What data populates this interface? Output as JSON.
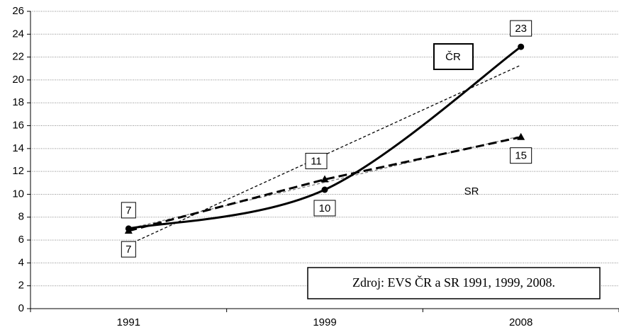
{
  "chart_data": {
    "type": "line",
    "categories": [
      "1991",
      "1999",
      "2008"
    ],
    "series": [
      {
        "name": "ČR",
        "color": "#000000",
        "dash": false,
        "marker": "circle",
        "values": [
          7,
          10.4,
          22.9
        ],
        "value_labels": [
          "7",
          "10",
          "23"
        ],
        "trend": [
          5.6,
          13.45,
          21.3
        ],
        "trend_color": "#000000"
      },
      {
        "name": "SR",
        "color": "#000000",
        "dash": true,
        "marker": "triangle",
        "values": [
          6.8,
          11.3,
          15
        ],
        "value_labels": [
          "7",
          "11",
          "15"
        ],
        "trend": [
          7,
          11.05,
          15.1
        ],
        "trend_color": "#808080"
      }
    ],
    "annotations": [
      "Zdroj: EVS ČR a SR 1991, 1999, 2008."
    ],
    "ylim": [
      0,
      26
    ],
    "yticks": [
      0,
      2,
      4,
      6,
      8,
      10,
      12,
      14,
      16,
      18,
      20,
      22,
      24,
      26
    ],
    "grid": true
  }
}
